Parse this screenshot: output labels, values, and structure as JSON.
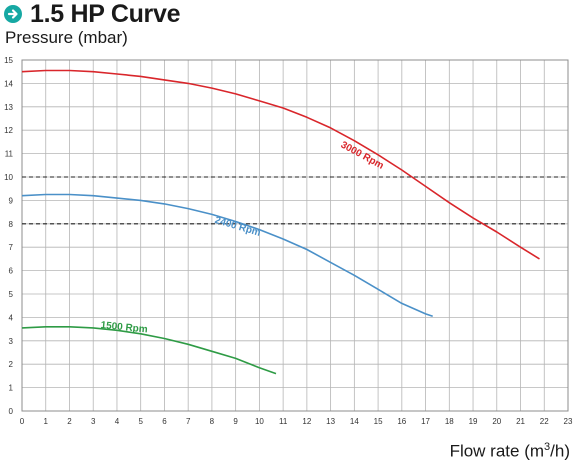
{
  "header": {
    "title": "1.5 HP Curve"
  },
  "chart_data": {
    "type": "line",
    "title": "1.5 HP Curve",
    "ylabel": "Pressure (mbar)",
    "xlabel_main": "Flow rate (m",
    "xlabel_sup": "3",
    "xlabel_end": "/h)",
    "xlim": [
      0,
      23
    ],
    "ylim": [
      0,
      15
    ],
    "x_ticks": [
      "0",
      "1",
      "2",
      "3",
      "4",
      "5",
      "6",
      "7",
      "8",
      "9",
      "10",
      "11",
      "12",
      "13",
      "14",
      "15",
      "16",
      "17",
      "18",
      "19",
      "20",
      "21",
      "22",
      "23"
    ],
    "y_ticks": [
      "0",
      "1",
      "2",
      "3",
      "4",
      "5",
      "6",
      "7",
      "8",
      "9",
      "10",
      "11",
      "12",
      "13",
      "14",
      "15"
    ],
    "grid": true,
    "reference_lines": [
      10,
      8
    ],
    "series": [
      {
        "name": "3000 Rpm",
        "color": "#d9262b",
        "x": [
          0,
          1,
          2,
          3,
          4,
          5,
          6,
          7,
          8,
          9,
          10,
          11,
          12,
          13,
          14,
          15,
          16,
          17,
          18,
          19,
          20,
          21,
          21.8
        ],
        "y": [
          14.5,
          14.55,
          14.55,
          14.5,
          14.4,
          14.3,
          14.15,
          14.0,
          13.8,
          13.55,
          13.25,
          12.95,
          12.55,
          12.1,
          11.55,
          10.95,
          10.3,
          9.6,
          8.9,
          8.25,
          7.65,
          7.0,
          6.5
        ],
        "label_x": 13.4,
        "label_y": 11.3
      },
      {
        "name": "2400 Rpm",
        "color": "#4a90c8",
        "x": [
          0,
          1,
          2,
          3,
          4,
          5,
          6,
          7,
          8,
          9,
          10,
          11,
          12,
          13,
          14,
          15,
          16,
          17,
          17.3
        ],
        "y": [
          9.2,
          9.25,
          9.25,
          9.2,
          9.1,
          9.0,
          8.85,
          8.65,
          8.4,
          8.1,
          7.75,
          7.35,
          6.9,
          6.35,
          5.8,
          5.2,
          4.6,
          4.15,
          4.05
        ],
        "label_x": 8.1,
        "label_y": 8.05
      },
      {
        "name": "1500 Rpm",
        "color": "#2e9b45",
        "x": [
          0,
          1,
          2,
          3,
          4,
          5,
          6,
          7,
          8,
          9,
          10,
          10.7
        ],
        "y": [
          3.55,
          3.6,
          3.6,
          3.55,
          3.45,
          3.3,
          3.1,
          2.85,
          2.55,
          2.25,
          1.85,
          1.6
        ],
        "label_x": 3.3,
        "label_y": 3.55
      }
    ]
  }
}
